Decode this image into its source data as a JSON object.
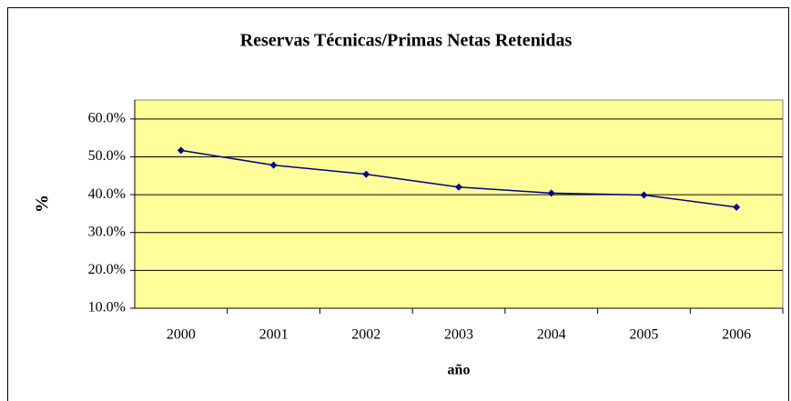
{
  "chart_data": {
    "type": "line",
    "title": "Reservas Técnicas/Primas Netas Retenidas",
    "x_label": "año",
    "y_label": "%",
    "categories": [
      "2000",
      "2001",
      "2002",
      "2003",
      "2004",
      "2005",
      "2006"
    ],
    "series": [
      {
        "name": "Reservas Técnicas/Primas Netas Retenidas",
        "color": "#000080",
        "values": [
          51.7,
          47.8,
          45.4,
          42.0,
          40.4,
          39.9,
          36.7
        ]
      }
    ],
    "ylim": [
      10,
      65
    ],
    "yticks": [
      {
        "value": 10,
        "label": "10.0%"
      },
      {
        "value": 20,
        "label": "20.0%"
      },
      {
        "value": 30,
        "label": "30.0%"
      },
      {
        "value": 40,
        "label": "40.0%"
      },
      {
        "value": 50,
        "label": "50.0%"
      },
      {
        "value": 60,
        "label": "60.0%"
      }
    ],
    "grid": true,
    "plot_background": "#FFFF99"
  }
}
